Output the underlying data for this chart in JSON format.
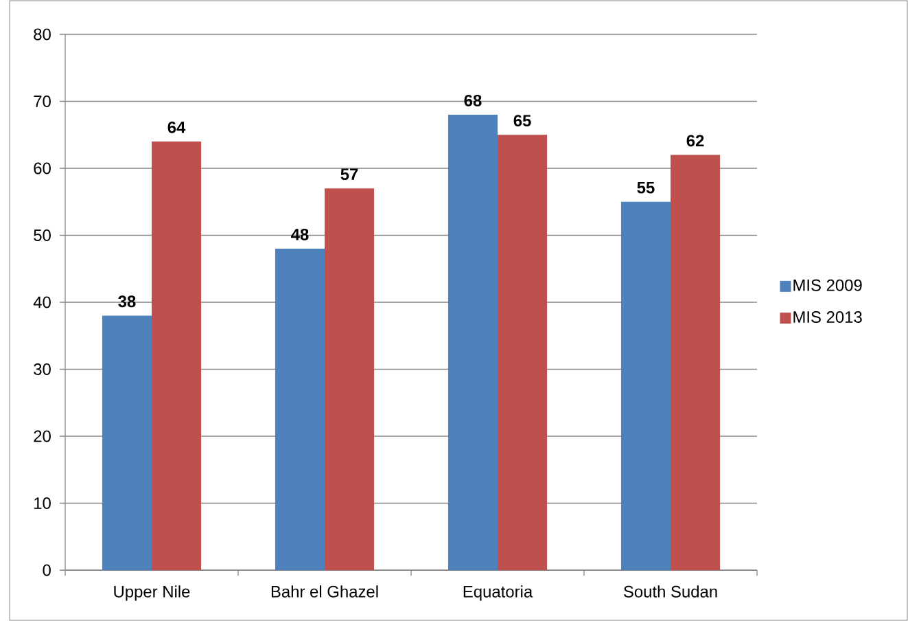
{
  "chart_data": {
    "type": "bar",
    "categories": [
      "Upper Nile",
      "Bahr el Ghazel",
      "Equatoria",
      "South Sudan"
    ],
    "series": [
      {
        "name": "MIS 2009",
        "color": "#4f81bd",
        "values": [
          38,
          48,
          68,
          55
        ]
      },
      {
        "name": "MIS 2013",
        "color": "#c0504d",
        "values": [
          64,
          57,
          65,
          62
        ]
      }
    ],
    "ylim": [
      0,
      80
    ],
    "yticks": [
      0,
      10,
      20,
      30,
      40,
      50,
      60,
      70,
      80
    ],
    "grid": "y",
    "legend": "right",
    "data_labels": true
  }
}
